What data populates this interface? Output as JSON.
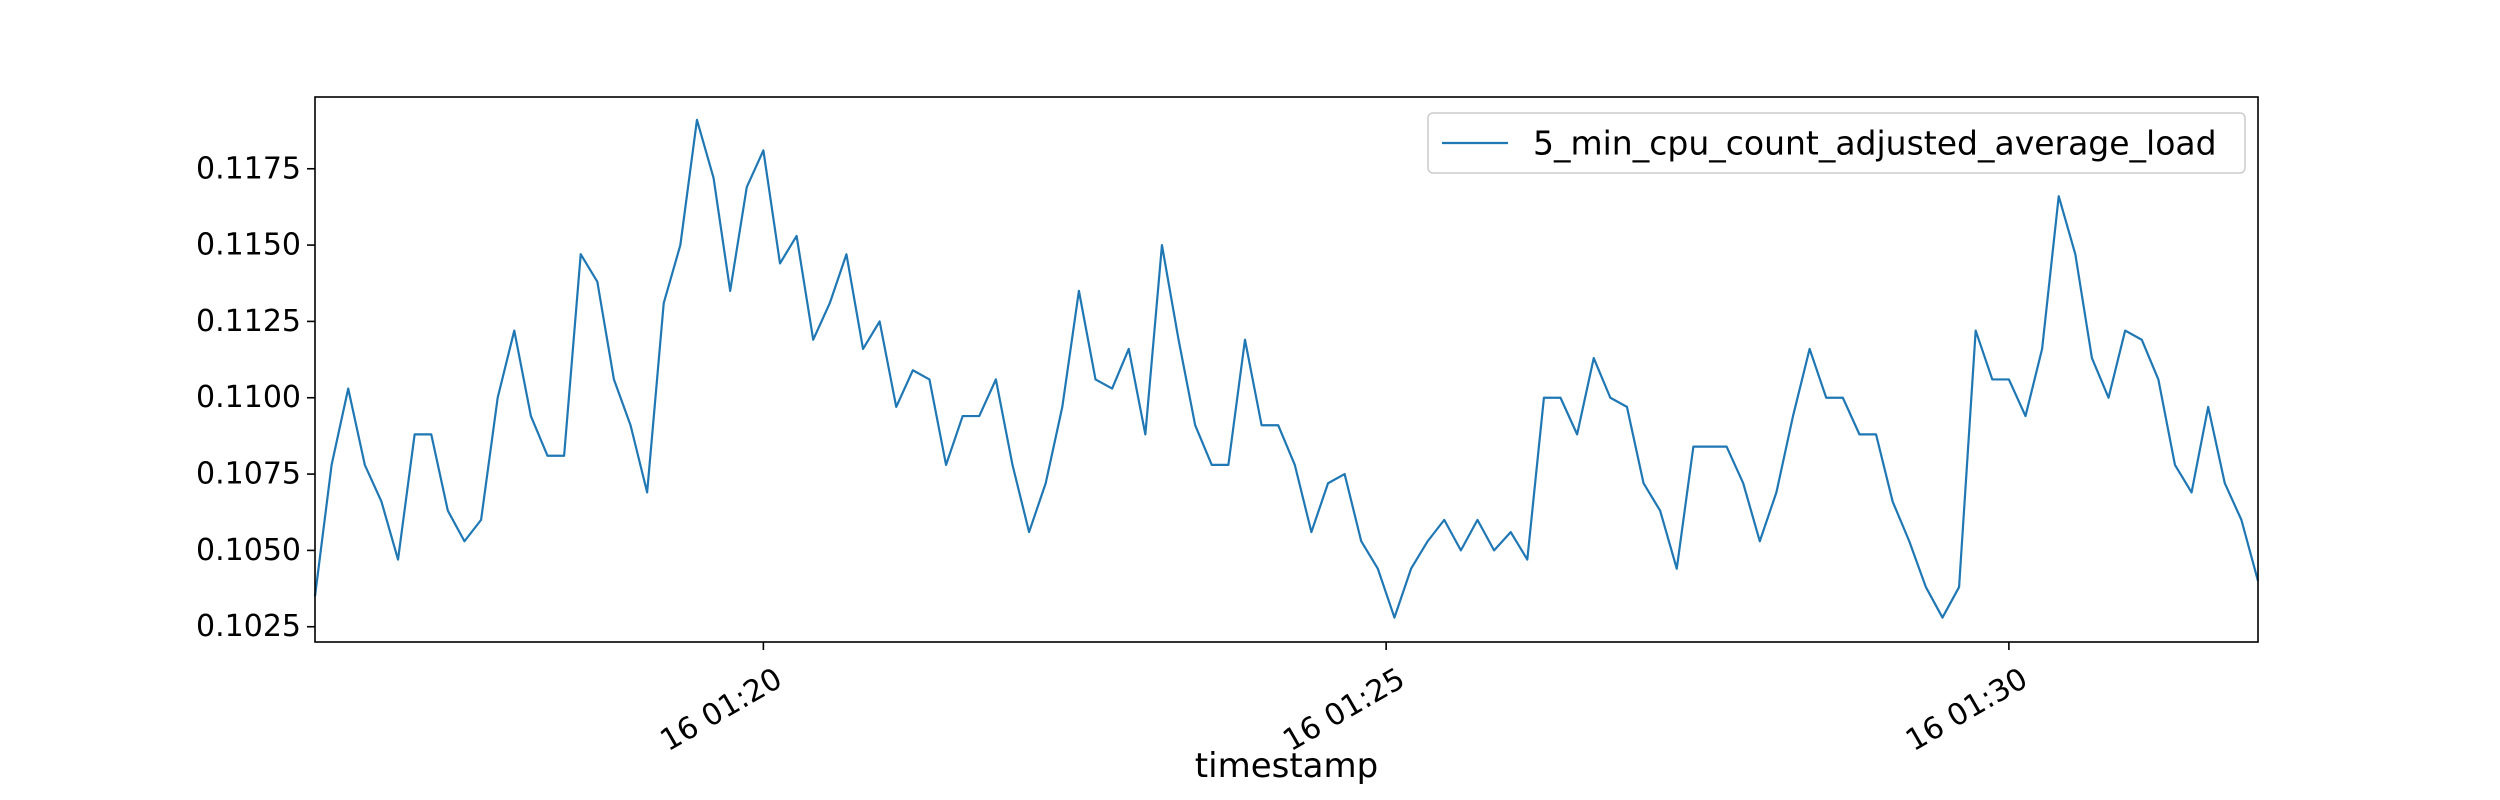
{
  "chart_data": {
    "type": "line",
    "title": "",
    "xlabel": "timestamp",
    "ylabel": "",
    "x_axis_kind": "time",
    "x_range": [
      "16 01:16:24",
      "16 01:32:00"
    ],
    "x_ticks": [
      {
        "t": "16 01:20:00",
        "label": "16 01:20"
      },
      {
        "t": "16 01:25:00",
        "label": "16 01:25"
      },
      {
        "t": "16 01:30:00",
        "label": "16 01:30"
      }
    ],
    "y_ticks": [
      0.1025,
      0.105,
      0.1075,
      0.11,
      0.1125,
      0.115,
      0.1175
    ],
    "y_tick_labels": [
      "0.1025",
      "0.1050",
      "0.1075",
      "0.1100",
      "0.1125",
      "0.1150",
      "0.1175"
    ],
    "ylim": [
      0.102,
      0.11985
    ],
    "grid": false,
    "legend_position": "top-right",
    "series": [
      {
        "name": "5_min_cpu_count_adjusted_average_load",
        "color": "#1f77b4",
        "x": [
          "16 01:16:24",
          "16 01:16:32",
          "16 01:16:40",
          "16 01:16:48",
          "16 01:16:56",
          "16 01:17:04",
          "16 01:17:12",
          "16 01:17:20",
          "16 01:17:28",
          "16 01:17:36",
          "16 01:17:44",
          "16 01:17:52",
          "16 01:18:00",
          "16 01:18:08",
          "16 01:18:16",
          "16 01:18:24",
          "16 01:18:32",
          "16 01:18:40",
          "16 01:18:48",
          "16 01:18:56",
          "16 01:19:04",
          "16 01:19:12",
          "16 01:19:20",
          "16 01:19:28",
          "16 01:19:36",
          "16 01:19:44",
          "16 01:19:52",
          "16 01:20:00",
          "16 01:20:08",
          "16 01:20:16",
          "16 01:20:24",
          "16 01:20:32",
          "16 01:20:40",
          "16 01:20:48",
          "16 01:20:56",
          "16 01:21:04",
          "16 01:21:12",
          "16 01:21:20",
          "16 01:21:28",
          "16 01:21:36",
          "16 01:21:44",
          "16 01:21:52",
          "16 01:22:00",
          "16 01:22:08",
          "16 01:22:16",
          "16 01:22:24",
          "16 01:22:32",
          "16 01:22:40",
          "16 01:22:48",
          "16 01:22:56",
          "16 01:23:04",
          "16 01:23:12",
          "16 01:23:20",
          "16 01:23:28",
          "16 01:23:36",
          "16 01:23:44",
          "16 01:23:52",
          "16 01:24:00",
          "16 01:24:08",
          "16 01:24:16",
          "16 01:24:24",
          "16 01:24:32",
          "16 01:24:40",
          "16 01:24:48",
          "16 01:24:56",
          "16 01:25:04",
          "16 01:25:12",
          "16 01:25:20",
          "16 01:25:28",
          "16 01:25:36",
          "16 01:25:44",
          "16 01:25:52",
          "16 01:26:00",
          "16 01:26:08",
          "16 01:26:16",
          "16 01:26:24",
          "16 01:26:32",
          "16 01:26:40",
          "16 01:26:48",
          "16 01:26:56",
          "16 01:27:04",
          "16 01:27:12",
          "16 01:27:20",
          "16 01:27:28",
          "16 01:27:36",
          "16 01:27:44",
          "16 01:27:52",
          "16 01:28:00",
          "16 01:28:08",
          "16 01:28:16",
          "16 01:28:24",
          "16 01:28:32",
          "16 01:28:40",
          "16 01:28:48",
          "16 01:28:56",
          "16 01:29:04",
          "16 01:29:12",
          "16 01:29:20",
          "16 01:29:28",
          "16 01:29:36",
          "16 01:29:44",
          "16 01:29:52",
          "16 01:30:00",
          "16 01:30:08",
          "16 01:30:16",
          "16 01:30:24",
          "16 01:30:32",
          "16 01:30:40",
          "16 01:30:48",
          "16 01:30:56",
          "16 01:31:04",
          "16 01:31:12",
          "16 01:31:20",
          "16 01:31:28",
          "16 01:31:36",
          "16 01:31:44",
          "16 01:31:52",
          "16 01:32:00"
        ],
        "y": [
          0.1035,
          0.1078,
          0.1103,
          0.1078,
          0.1066,
          0.1047,
          0.1088,
          0.1088,
          0.1063,
          0.1053,
          0.106,
          0.11,
          0.1122,
          0.1094,
          0.1081,
          0.1081,
          0.1147,
          0.1138,
          0.1106,
          0.1091,
          0.1069,
          0.1131,
          0.115,
          0.1191,
          0.1172,
          0.1135,
          0.1169,
          0.1181,
          0.1144,
          0.1153,
          0.1119,
          0.1131,
          0.1147,
          0.1116,
          0.1125,
          0.1097,
          0.1109,
          0.1106,
          0.1078,
          0.1094,
          0.1094,
          0.1106,
          0.1078,
          0.1056,
          0.1072,
          0.1097,
          0.1135,
          0.1106,
          0.1103,
          0.1116,
          0.1088,
          0.115,
          0.1119,
          0.1091,
          0.1078,
          0.1078,
          0.1119,
          0.1091,
          0.1091,
          0.1078,
          0.1056,
          0.1072,
          0.1075,
          0.1053,
          0.1044,
          0.1028,
          0.1044,
          0.1053,
          0.106,
          0.105,
          0.106,
          0.105,
          0.1056,
          0.1047,
          0.11,
          0.11,
          0.1088,
          0.1113,
          0.11,
          0.1097,
          0.1072,
          0.1063,
          0.1044,
          0.1084,
          0.1084,
          0.1084,
          0.1072,
          0.1053,
          0.1069,
          0.1094,
          0.1116,
          0.11,
          0.11,
          0.1088,
          0.1088,
          0.1066,
          0.1053,
          0.1038,
          0.1028,
          0.1038,
          0.1122,
          0.1106,
          0.1106,
          0.1094,
          0.1116,
          0.1166,
          0.1147,
          0.1113,
          0.11,
          0.1122,
          0.1119,
          0.1106,
          0.1078,
          0.1069,
          0.1097,
          0.1072,
          0.106,
          0.104
        ]
      }
    ]
  }
}
